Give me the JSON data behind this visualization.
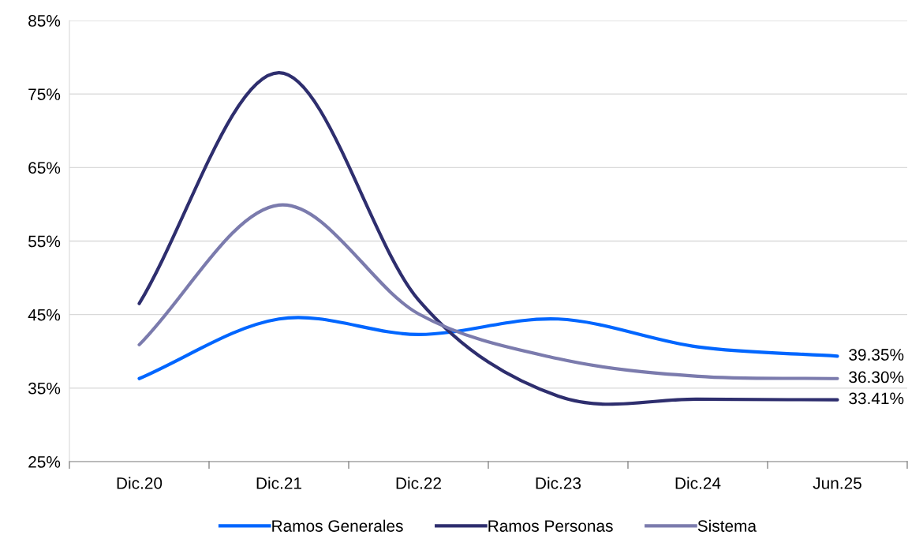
{
  "chart_data": {
    "type": "line",
    "categories": [
      "Dic.20",
      "Dic.21",
      "Dic.22",
      "Dic.23",
      "Dic.24",
      "Jun.25"
    ],
    "series": [
      {
        "name": "Ramos Generales",
        "color": "#0066ff",
        "values": [
          36.3,
          44.4,
          42.3,
          44.4,
          40.6,
          39.35
        ],
        "value_labels": [
          null,
          null,
          null,
          null,
          null,
          "39.35%"
        ]
      },
      {
        "name": "Ramos Personas",
        "color": "#2e2e6e",
        "values": [
          46.5,
          77.9,
          47.0,
          33.9,
          33.5,
          33.41
        ],
        "value_labels": [
          null,
          null,
          null,
          null,
          null,
          "33.41%"
        ]
      },
      {
        "name": "Sistema",
        "color": "#7b7bad",
        "values": [
          40.9,
          59.9,
          45.1,
          39.0,
          36.6,
          36.3
        ],
        "value_labels": [
          null,
          null,
          null,
          null,
          null,
          "36.30%"
        ]
      }
    ],
    "ylim": [
      25,
      85
    ],
    "yticks": [
      {
        "value": 25,
        "label": "25%"
      },
      {
        "value": 35,
        "label": "35%"
      },
      {
        "value": 45,
        "label": "45%"
      },
      {
        "value": 55,
        "label": "55%"
      },
      {
        "value": 65,
        "label": "65%"
      },
      {
        "value": 75,
        "label": "75%"
      },
      {
        "value": 85,
        "label": "85%"
      }
    ],
    "grid": "y",
    "legend": "bottom",
    "marker": "none",
    "line_style": "solid"
  }
}
